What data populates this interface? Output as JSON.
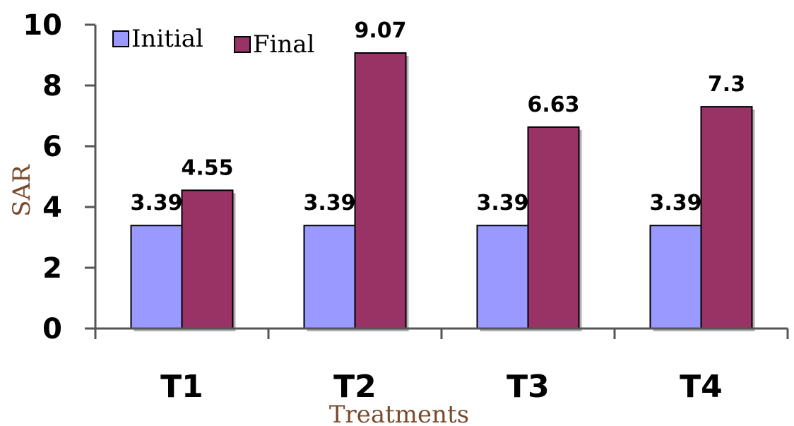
{
  "chart_data": {
    "type": "bar",
    "categories": [
      "T1",
      "T2",
      "T3",
      "T4"
    ],
    "series": [
      {
        "name": "Initial",
        "values": [
          3.39,
          3.39,
          3.39,
          3.39
        ],
        "color": "#9999ff"
      },
      {
        "name": "Final",
        "values": [
          4.55,
          9.07,
          6.63,
          7.3
        ],
        "color": "#993366"
      }
    ],
    "data_labels": {
      "Initial": [
        "3.39",
        "3.39",
        "3.39",
        "3.39"
      ],
      "Final": [
        "4.55",
        "9.07",
        "6.63",
        "7.3"
      ]
    },
    "title": "",
    "xlabel": "Treatments",
    "ylabel": "SAR",
    "ylim": [
      0,
      10
    ],
    "yticks": [
      "0",
      "2",
      "4",
      "6",
      "8",
      "10"
    ],
    "grid": false,
    "legend_position": "top-left"
  }
}
